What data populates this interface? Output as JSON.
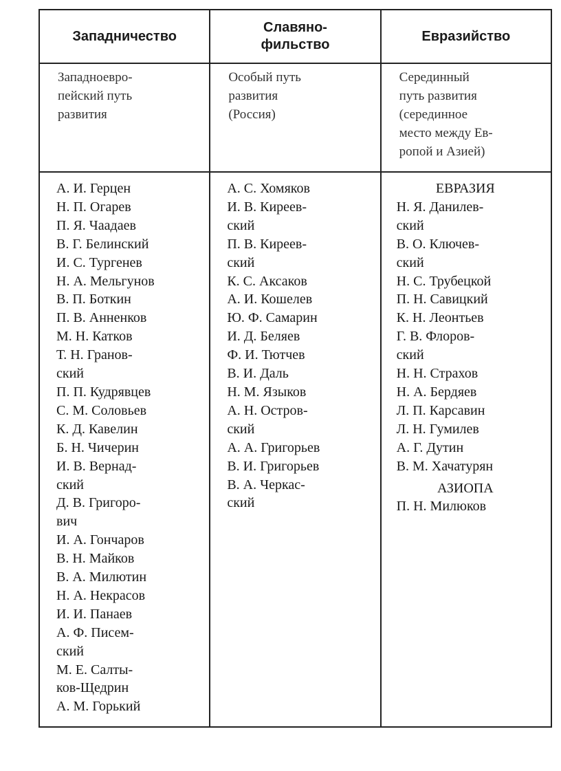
{
  "columns": [
    {
      "title": "Западничество",
      "description": "Западноевро-\nпейский путь\nразвития",
      "names": [
        "А. И. Герцен",
        "Н. П. Огарев",
        "П. Я. Чаадаев",
        "В. Г. Белинский",
        "И. С. Тургенев",
        "Н. А. Мельгунов",
        "В. П. Боткин",
        "П. В. Анненков",
        "М. Н. Катков",
        "Т. Н. Гранов-\nский",
        "П. П. Кудрявцев",
        "С. М. Соловьев",
        "К. Д. Кавелин",
        "Б. Н. Чичерин",
        "И. В. Вернад-\nский",
        "Д. В. Григоро-\nвич",
        "И. А. Гончаров",
        "В. Н. Майков",
        "В. А. Милютин",
        "Н. А. Некрасов",
        "И. И. Панаев",
        "А. Ф. Писем-\nский",
        "М. Е. Салты-\nков-Щедрин",
        "А. М. Горький"
      ]
    },
    {
      "title": "Славяно-\nфильство",
      "description": "Особый путь\nразвития\n(Россия)",
      "names": [
        "А. С. Хомяков",
        "И. В. Киреев-\nский",
        "П. В. Киреев-\nский",
        "К. С. Аксаков",
        "А. И. Кошелев",
        "Ю. Ф. Самарин",
        "И. Д. Беляев",
        "Ф. И. Тютчев",
        "В. И. Даль",
        "Н. М. Языков",
        "А. Н. Остров-\nский",
        "А. А. Григорьев",
        "В. И. Григорьев",
        "В. А. Черкас-\nский"
      ]
    },
    {
      "title": "Евразийство",
      "description": "Серединный\nпуть развития\n(серединное\nместо между Ев-\nропой и Азией)",
      "groups": [
        {
          "label": "ЕВРАЗИЯ",
          "names": [
            "Н. Я. Данилев-\nский",
            "В. О. Ключев-\nский",
            "Н. С. Трубецкой",
            "П. Н. Савицкий",
            "К. Н. Леонтьев",
            "Г. В. Флоров-\nский",
            "Н. Н. Страхов",
            "Н. А. Бердяев",
            "Л. П. Карсавин",
            "Л. Н. Гумилев",
            "А. Г. Дутин",
            "В. М. Хачатурян"
          ]
        },
        {
          "label": "АЗИОПА",
          "names": [
            "П. Н. Милюков"
          ]
        }
      ]
    }
  ]
}
